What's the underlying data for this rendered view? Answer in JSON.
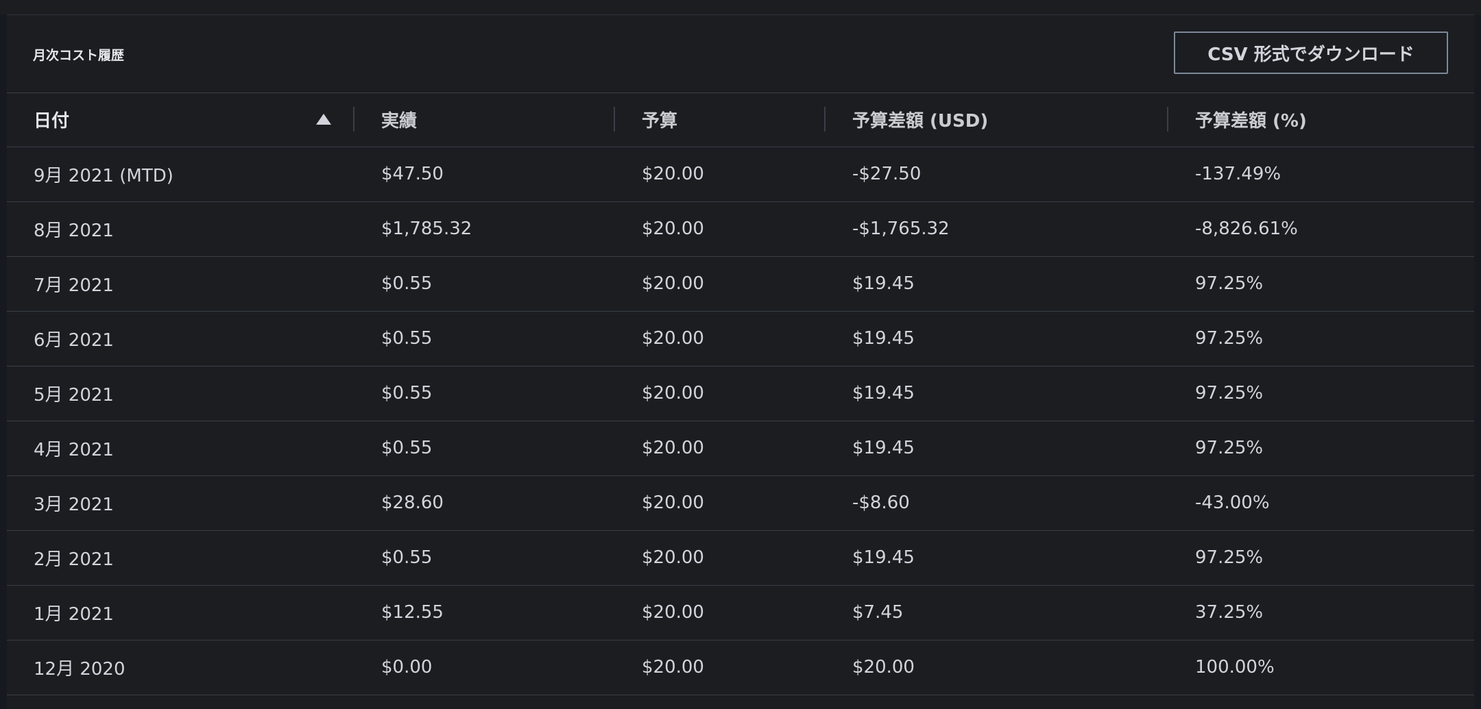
{
  "panel": {
    "title": "月次コスト履歴",
    "download_button": "CSV 形式でダウンロード"
  },
  "table": {
    "headers": [
      "日付",
      "実績",
      "予算",
      "予算差額 (USD)",
      "予算差額 (%)"
    ],
    "rows": [
      [
        "9月 2021 (MTD)",
        "$47.50",
        "$20.00",
        "-$27.50",
        "-137.49%"
      ],
      [
        "8月 2021",
        "$1,785.32",
        "$20.00",
        "-$1,765.32",
        "-8,826.61%"
      ],
      [
        "7月 2021",
        "$0.55",
        "$20.00",
        "$19.45",
        "97.25%"
      ],
      [
        "6月 2021",
        "$0.55",
        "$20.00",
        "$19.45",
        "97.25%"
      ],
      [
        "5月 2021",
        "$0.55",
        "$20.00",
        "$19.45",
        "97.25%"
      ],
      [
        "4月 2021",
        "$0.55",
        "$20.00",
        "$19.45",
        "97.25%"
      ],
      [
        "3月 2021",
        "$28.60",
        "$20.00",
        "-$8.60",
        "-43.00%"
      ],
      [
        "2月 2021",
        "$0.55",
        "$20.00",
        "$19.45",
        "97.25%"
      ],
      [
        "1月 2021",
        "$12.55",
        "$20.00",
        "$7.45",
        "37.25%"
      ],
      [
        "12月 2020",
        "$0.00",
        "$20.00",
        "$20.00",
        "100.00%"
      ]
    ]
  }
}
